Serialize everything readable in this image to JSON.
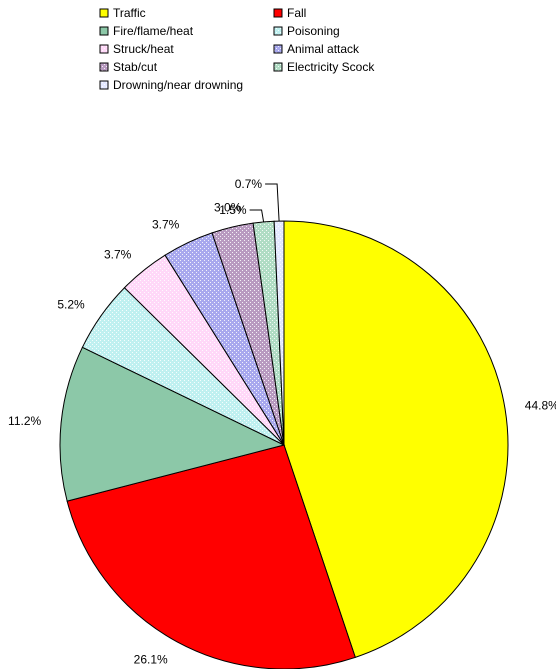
{
  "chart_data": {
    "type": "pie",
    "title": "",
    "legend_placement": "top",
    "series": [
      {
        "name": "Traffic",
        "value": 44.8,
        "label": "44.8%",
        "color": "#ffff00",
        "pattern": "solid"
      },
      {
        "name": "Fall",
        "value": 26.1,
        "label": "26.1%",
        "color": "#ff0000",
        "pattern": "solid"
      },
      {
        "name": "Fire/flame/heat",
        "value": 11.2,
        "label": "11.2%",
        "color": "#8cc8a8",
        "pattern": "solid"
      },
      {
        "name": "Poisoning",
        "value": 5.2,
        "label": "5.2%",
        "color": "#bff0f0",
        "pattern": "dotted"
      },
      {
        "name": "Struck/heat",
        "value": 3.7,
        "label": "3.7%",
        "color": "#ffd8f8",
        "pattern": "dotted"
      },
      {
        "name": "Animal attack",
        "value": 3.7,
        "label": "3.7%",
        "color": "#a8a8ee",
        "pattern": "dotted"
      },
      {
        "name": "Stab/cut",
        "value": 3.0,
        "label": "3.0%",
        "color": "#b89ac0",
        "pattern": "dotted"
      },
      {
        "name": "Electricity Scock",
        "value": 1.5,
        "label": "1.5%",
        "color": "#b0dcc4",
        "pattern": "dotted"
      },
      {
        "name": "Drowning/near drowning",
        "value": 0.7,
        "label": "0.7%",
        "color": "#e4e8ff",
        "pattern": "dotted"
      }
    ]
  }
}
